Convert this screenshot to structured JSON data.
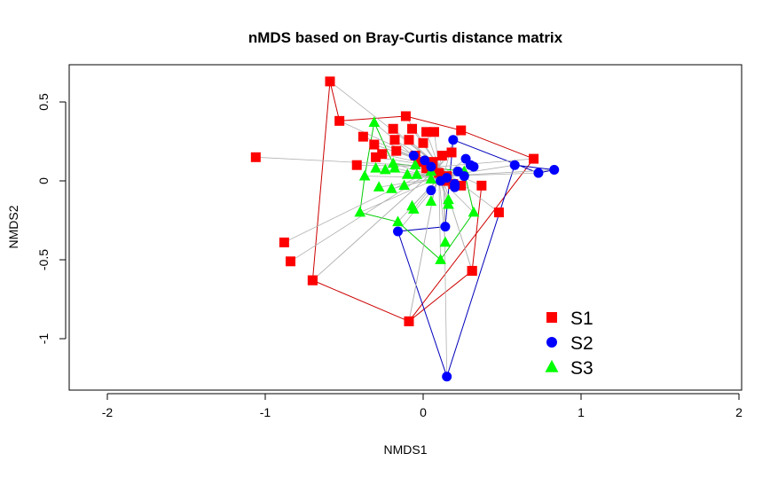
{
  "chart_data": {
    "type": "scatter",
    "title": "nMDS based on Bray-Curtis distance matrix",
    "xlabel": "NMDS1",
    "ylabel": "NMDS2",
    "xlim": [
      -2.2,
      2.0
    ],
    "ylim": [
      -1.3,
      0.7
    ],
    "xticks": [
      -2,
      -1,
      0,
      1,
      2
    ],
    "yticks": [
      -1.0,
      -0.5,
      0.0,
      0.5
    ],
    "grid": false,
    "legend_position": "bottom-right",
    "series": [
      {
        "name": "S1",
        "color": "#ff0000",
        "marker": "square",
        "centroid": [
          0.1,
          0.09
        ],
        "hull_order": [
          6,
          40,
          39,
          38,
          32,
          12,
          13,
          10,
          9,
          8,
          7
        ],
        "points": [
          [
            -1.06,
            0.15
          ],
          [
            -0.88,
            -0.39
          ],
          [
            -0.84,
            -0.51
          ],
          [
            -0.7,
            -0.63
          ],
          [
            -0.42,
            0.1
          ],
          [
            -0.38,
            0.28
          ],
          [
            -0.59,
            0.63
          ],
          [
            -0.53,
            0.38
          ],
          [
            -0.11,
            0.41
          ],
          [
            0.24,
            0.32
          ],
          [
            0.7,
            0.14
          ],
          [
            0.48,
            -0.2
          ],
          [
            0.31,
            -0.57
          ],
          [
            -0.09,
            -0.89
          ],
          [
            -0.31,
            0.23
          ],
          [
            -0.3,
            0.15
          ],
          [
            -0.26,
            0.17
          ],
          [
            -0.19,
            0.33
          ],
          [
            -0.18,
            0.26
          ],
          [
            -0.09,
            0.26
          ],
          [
            -0.07,
            0.33
          ],
          [
            -0.05,
            0.16
          ],
          [
            -0.17,
            0.19
          ],
          [
            0.0,
            0.24
          ],
          [
            0.02,
            0.31
          ],
          [
            0.07,
            0.31
          ],
          [
            -0.03,
            0.12
          ],
          [
            0.02,
            0.08
          ],
          [
            0.06,
            0.1
          ],
          [
            0.06,
            0.12
          ],
          [
            0.12,
            0.16
          ],
          [
            0.18,
            0.18
          ],
          [
            0.37,
            -0.03
          ],
          [
            0.1,
            0.05
          ],
          [
            0.15,
            0.03
          ],
          [
            0.13,
            0.0
          ],
          [
            0.19,
            -0.02
          ],
          [
            0.24,
            -0.03
          ],
          [
            0.31,
            -0.57
          ],
          [
            -0.09,
            -0.89
          ],
          [
            -0.7,
            -0.63
          ]
        ]
      },
      {
        "name": "S2",
        "color": "#0000ff",
        "marker": "circle",
        "centroid": [
          0.13,
          0.03
        ],
        "hull_order": [
          17,
          19,
          18,
          3,
          6,
          5,
          4
        ],
        "points": [
          [
            -0.06,
            0.16
          ],
          [
            0.01,
            0.13
          ],
          [
            0.05,
            0.09
          ],
          [
            0.19,
            0.26
          ],
          [
            0.58,
            0.1
          ],
          [
            0.83,
            0.07
          ],
          [
            0.73,
            0.05
          ],
          [
            0.27,
            0.14
          ],
          [
            0.3,
            0.1
          ],
          [
            0.32,
            0.09
          ],
          [
            0.22,
            0.06
          ],
          [
            0.26,
            0.03
          ],
          [
            0.15,
            0.02
          ],
          [
            0.11,
            0.0
          ],
          [
            0.2,
            -0.02
          ],
          [
            0.05,
            -0.06
          ],
          [
            0.2,
            -0.04
          ],
          [
            0.15,
            -1.24
          ],
          [
            0.14,
            -0.29
          ],
          [
            -0.16,
            -0.32
          ]
        ]
      },
      {
        "name": "S3",
        "color": "#00ff00",
        "marker": "triangle",
        "centroid": [
          0.1,
          0.02
        ],
        "hull_order": [
          0,
          2,
          9,
          17,
          19,
          13,
          12,
          15
        ],
        "points": [
          [
            -0.31,
            0.37
          ],
          [
            -0.3,
            0.08
          ],
          [
            -0.19,
            0.11
          ],
          [
            -0.24,
            0.07
          ],
          [
            -0.18,
            0.08
          ],
          [
            -0.05,
            0.1
          ],
          [
            -0.1,
            0.04
          ],
          [
            -0.04,
            0.04
          ],
          [
            0.05,
            0.06
          ],
          [
            0.26,
            0.06
          ],
          [
            -0.28,
            -0.04
          ],
          [
            -0.12,
            -0.03
          ],
          [
            -0.4,
            -0.2
          ],
          [
            -0.16,
            -0.26
          ],
          [
            -0.07,
            -0.16
          ],
          [
            -0.37,
            0.03
          ],
          [
            0.05,
            -0.13
          ],
          [
            0.32,
            -0.2
          ],
          [
            0.16,
            -0.15
          ],
          [
            0.11,
            -0.5
          ],
          [
            0.14,
            -0.39
          ],
          [
            -0.06,
            -0.18
          ],
          [
            -0.2,
            -0.05
          ],
          [
            0.05,
            0.01
          ],
          [
            0.16,
            -0.12
          ]
        ]
      }
    ]
  }
}
